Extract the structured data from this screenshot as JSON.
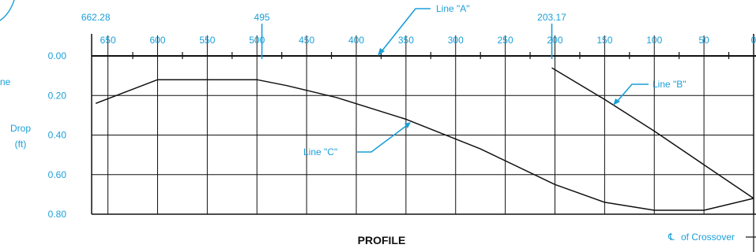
{
  "colors": {
    "accent": "#1a9fd8",
    "line": "#111111"
  },
  "chart_data": {
    "type": "line",
    "title": "PROFILE",
    "ylabel_fragment": "ne",
    "ylabel": [
      "Drop",
      "(ft)"
    ],
    "xlim": [
      662.28,
      0
    ],
    "ylim": [
      0,
      0.8
    ],
    "y_inverted": true,
    "grid": true,
    "x_ticks": [
      "650",
      "600",
      "550",
      "500",
      "450",
      "400",
      "350",
      "300",
      "250",
      "200",
      "150",
      "100",
      "50",
      "0"
    ],
    "y_ticks": [
      "0.00",
      "0.20",
      "0.40",
      "0.60",
      "0.80"
    ],
    "top_markers": [
      {
        "value": 662.28,
        "label": "662.28"
      },
      {
        "value": 495,
        "label": "495"
      },
      {
        "value": 203.17,
        "label": "203.17"
      }
    ],
    "annotations": [
      {
        "label": "Line \"A\"",
        "points_to": [
          382,
          0.0
        ]
      },
      {
        "label": "Line \"B\"",
        "points_to": [
          141,
          0.24
        ]
      },
      {
        "label": "Line \"C\"",
        "points_to": [
          345,
          0.34
        ]
      },
      {
        "label": "of Crossover",
        "symbol": "℄"
      }
    ],
    "series": [
      {
        "name": "Line \"C\"",
        "x": [
          662.28,
          600,
          500,
          470,
          420,
          350,
          275,
          200,
          150,
          100,
          50,
          0
        ],
        "y": [
          0.24,
          0.12,
          0.12,
          0.15,
          0.21,
          0.32,
          0.47,
          0.65,
          0.74,
          0.78,
          0.78,
          0.72
        ]
      },
      {
        "name": "Line \"B\"",
        "x": [
          203.17,
          150,
          100,
          50,
          0
        ],
        "y": [
          0.06,
          0.22,
          0.38,
          0.55,
          0.72
        ]
      }
    ]
  }
}
